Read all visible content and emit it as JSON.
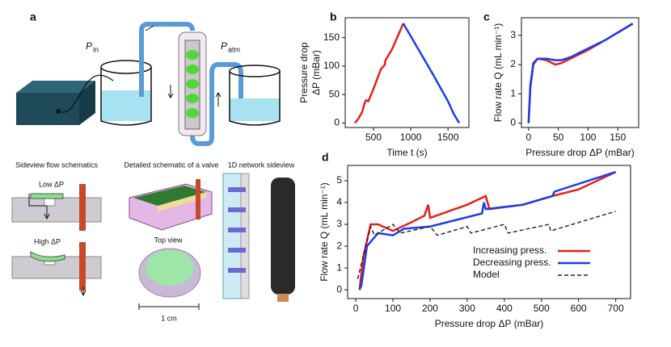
{
  "schematic": {
    "panel": "a",
    "p_in": {
      "symbol": "P",
      "sub": "in"
    },
    "p_atm": {
      "symbol": "P",
      "sub": "atm"
    },
    "headers": [
      "Sideview flow schematics",
      "Detailed schematic of a valve",
      "1D network sideview"
    ],
    "low": "Low ΔP",
    "high": "High ΔP",
    "top_view": "Top view",
    "scale": "1 cm"
  },
  "chart_data": [
    {
      "type": "line",
      "panel": "b",
      "xlabel": "Time t (s)",
      "ylabel": [
        "Pressure drop",
        "ΔP (mBar)"
      ],
      "xlim": [
        120,
        1780
      ],
      "ylim": [
        -8,
        185
      ],
      "xticks": [
        500,
        1000,
        1500
      ],
      "yticks": [
        0,
        50,
        100,
        150
      ],
      "series": [
        {
          "name": "Increasing press.",
          "color": "#e8201e",
          "x": [
            250,
            300,
            350,
            380,
            400,
            430,
            500,
            600,
            650,
            660,
            750,
            900
          ],
          "values": [
            0,
            8,
            20,
            35,
            40,
            38,
            60,
            95,
            102,
            110,
            130,
            175
          ]
        },
        {
          "name": "Decreasing press.",
          "color": "#1e3ce8",
          "x": [
            900,
            1100,
            1300,
            1500,
            1580,
            1650
          ],
          "values": [
            175,
            130,
            85,
            38,
            15,
            0
          ]
        }
      ]
    },
    {
      "type": "line",
      "panel": "c",
      "xlabel": "Pressure drop ΔP (mBar)",
      "ylabel": "Flow rate Q (mL min⁻¹)",
      "xlim": [
        -12,
        185
      ],
      "ylim": [
        -0.15,
        3.6
      ],
      "xticks": [
        0,
        50,
        100,
        150
      ],
      "yticks": [
        0,
        1,
        2,
        3
      ],
      "series": [
        {
          "name": "Increasing press.",
          "color": "#e8201e",
          "x": [
            0,
            3,
            8,
            15,
            30,
            45,
            55,
            70,
            100,
            130,
            175
          ],
          "values": [
            0,
            1.2,
            2.0,
            2.2,
            2.15,
            2.0,
            2.05,
            2.2,
            2.5,
            2.85,
            3.4
          ]
        },
        {
          "name": "Decreasing press.",
          "color": "#1e3ce8",
          "x": [
            0,
            3,
            8,
            15,
            30,
            45,
            55,
            70,
            100,
            130,
            175
          ],
          "values": [
            0,
            1.3,
            2.05,
            2.2,
            2.2,
            2.15,
            2.15,
            2.25,
            2.55,
            2.85,
            3.4
          ]
        }
      ]
    },
    {
      "type": "line",
      "panel": "d",
      "xlabel": "Pressure drop ΔP (mBar)",
      "ylabel": "Flow rate Q (mL min⁻¹)",
      "xlim": [
        -22,
        740
      ],
      "ylim": [
        -0.4,
        5.7
      ],
      "xticks": [
        0,
        100,
        200,
        300,
        400,
        500,
        600,
        700
      ],
      "yticks": [
        0,
        1,
        2,
        3,
        4,
        5
      ],
      "legend": "lower center",
      "series": [
        {
          "name": "Increasing press.",
          "color": "#e8201e",
          "x": [
            10,
            20,
            40,
            60,
            100,
            150,
            185,
            195,
            200,
            300,
            350,
            360,
            450,
            530,
            600,
            700
          ],
          "values": [
            0,
            1.5,
            3.0,
            3.0,
            2.7,
            3.1,
            3.4,
            3.9,
            3.3,
            3.9,
            4.3,
            3.7,
            3.9,
            4.3,
            4.6,
            5.4
          ]
        },
        {
          "name": "Decreasing press.",
          "color": "#1e3ce8",
          "x": [
            10,
            15,
            30,
            60,
            100,
            130,
            200,
            340,
            345,
            350,
            450,
            530,
            535,
            700
          ],
          "values": [
            0,
            0.2,
            2.0,
            2.6,
            2.5,
            2.8,
            2.9,
            3.5,
            4.0,
            3.7,
            3.9,
            4.3,
            4.5,
            5.4
          ]
        },
        {
          "name": "Model",
          "color": "#222222",
          "dash": true,
          "x": [
            5,
            40,
            50,
            100,
            120,
            200,
            220,
            300,
            310,
            400,
            410,
            520,
            525,
            700
          ],
          "values": [
            0.5,
            2.9,
            2.5,
            3.0,
            2.6,
            2.9,
            2.5,
            2.9,
            2.6,
            3.0,
            2.6,
            3.0,
            2.7,
            3.6
          ]
        }
      ]
    }
  ]
}
